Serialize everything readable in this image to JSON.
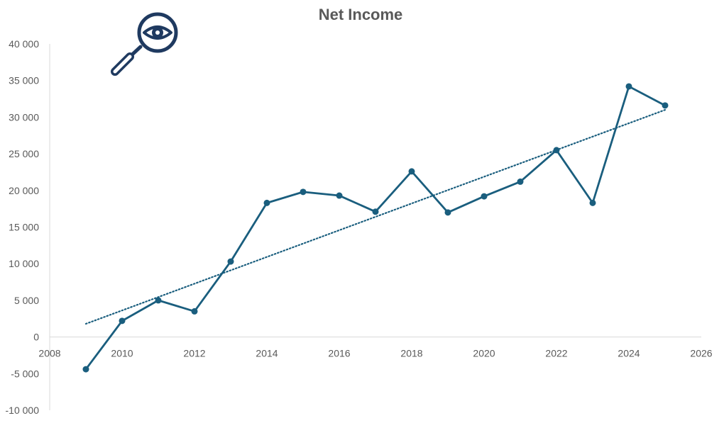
{
  "chart_data": {
    "type": "line",
    "title": "Net Income",
    "xlabel": "",
    "ylabel": "",
    "xlim": [
      2008,
      2026
    ],
    "ylim": [
      -10000,
      40000
    ],
    "x_ticks": [
      2008,
      2010,
      2012,
      2014,
      2016,
      2018,
      2020,
      2022,
      2024,
      2026
    ],
    "y_ticks": [
      -10000,
      -5000,
      0,
      5000,
      10000,
      15000,
      20000,
      25000,
      30000,
      35000,
      40000
    ],
    "x_tick_labels": [
      "2008",
      "2010",
      "2012",
      "2014",
      "2016",
      "2018",
      "2020",
      "2022",
      "2024",
      "2026"
    ],
    "y_tick_labels": [
      "-10 000",
      "-5 000",
      "0",
      "5 000",
      "10 000",
      "15 000",
      "20 000",
      "25 000",
      "30 000",
      "35 000",
      "40 000"
    ],
    "grid": false,
    "legend": "none",
    "series": [
      {
        "x": [
          2009,
          2010,
          2011,
          2012,
          2013,
          2014,
          2015,
          2016,
          2017,
          2018,
          2019,
          2020,
          2021,
          2022,
          2023,
          2024,
          2025
        ],
        "values": [
          -4400,
          2200,
          5000,
          3500,
          10300,
          18300,
          19800,
          19300,
          17100,
          22600,
          17000,
          19200,
          21200,
          25500,
          18300,
          34200,
          31600
        ],
        "color": "#1a5e7e",
        "marker": "circle"
      }
    ],
    "trendline": {
      "type": "linear",
      "style": "dotted",
      "color": "#1a5e7e",
      "x": [
        2009,
        2025
      ],
      "values": [
        1800,
        31000
      ]
    }
  },
  "icon": {
    "name": "magnifier-eye-icon",
    "color": "#1f3a60"
  }
}
